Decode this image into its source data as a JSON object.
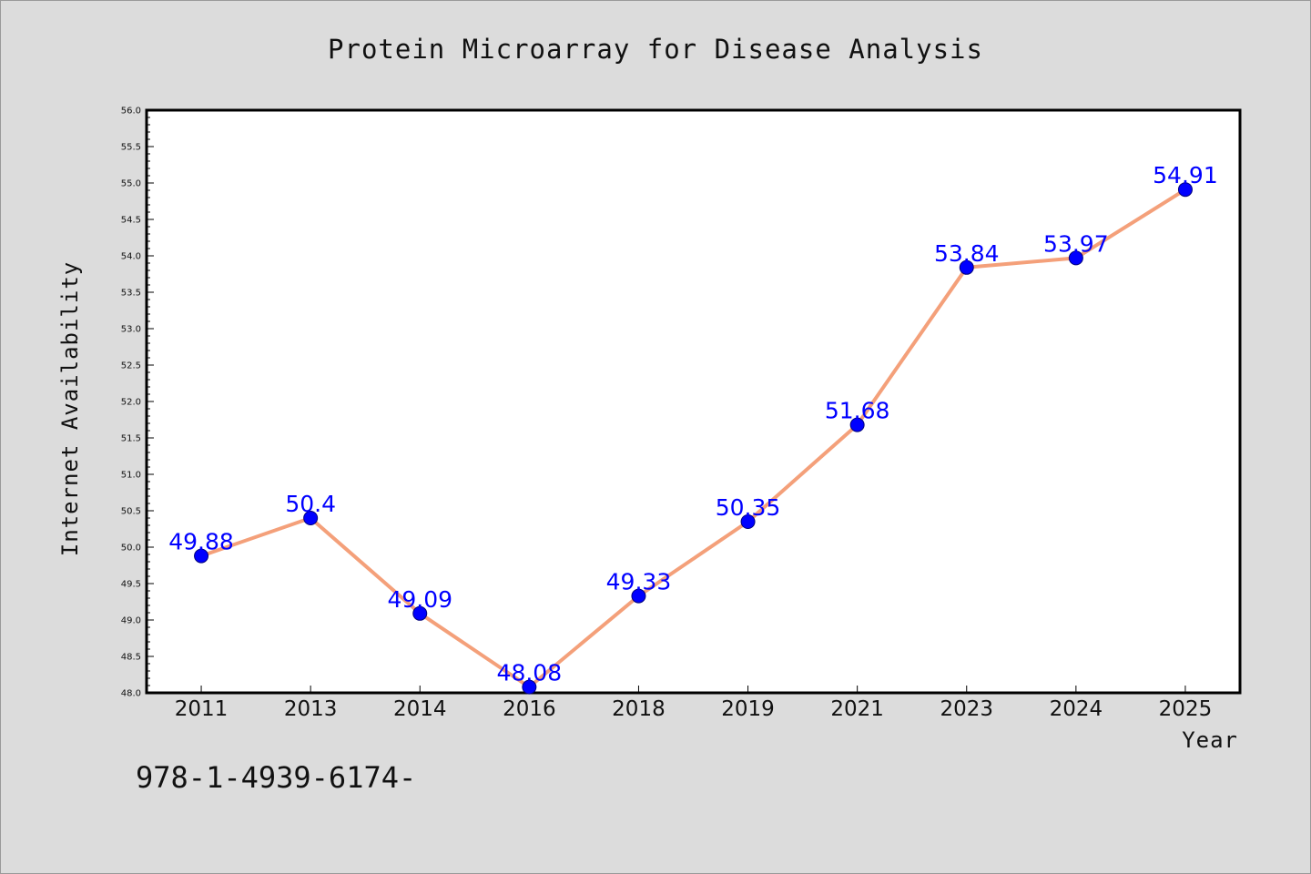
{
  "chart_data": {
    "type": "line",
    "title": "Protein Microarray for Disease Analysis",
    "xlabel": "Year",
    "ylabel": "Internet Availability",
    "categories": [
      "2011",
      "2013",
      "2014",
      "2016",
      "2018",
      "2019",
      "2021",
      "2023",
      "2024",
      "2025"
    ],
    "series": [
      {
        "values": [
          49.88,
          50.4,
          49.09,
          48.08,
          49.33,
          50.35,
          51.68,
          53.84,
          53.97,
          54.91
        ],
        "data_labels": [
          "49.88",
          "50.4",
          "49.09",
          "48.08",
          "49.33",
          "50.35",
          "51.68",
          "53.84",
          "53.97",
          "54.91"
        ],
        "line_color": "#f4a07a",
        "marker_color": "#0000ff"
      }
    ],
    "ylim": [
      48.0,
      56.0
    ],
    "yticks": [
      "48.0",
      "48.5",
      "49.0",
      "49.5",
      "50.0",
      "50.5",
      "51.0",
      "51.5",
      "52.0",
      "52.5",
      "53.0",
      "53.5",
      "54.0",
      "54.5",
      "55.0",
      "55.5",
      "56.0"
    ],
    "grid": false,
    "legend": "none"
  },
  "footnote": "978-1-4939-6174-",
  "colors": {
    "background": "#dcdcdc",
    "plot_area": "#ffffff",
    "line": "#f4a07a",
    "marker": "#0000ff",
    "data_label": "#0000ff"
  }
}
